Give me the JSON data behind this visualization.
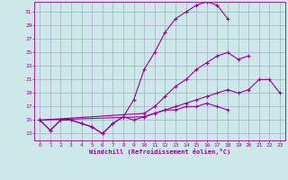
{
  "xlabel": "Windchill (Refroidissement éolien,°C)",
  "bg_color": "#cce8e8",
  "line_color": "#990099",
  "grid_color": "#aaaacc",
  "xlim": [
    -0.5,
    23.5
  ],
  "ylim": [
    12,
    32.5
  ],
  "yticks": [
    13,
    15,
    17,
    19,
    21,
    23,
    25,
    27,
    29,
    31
  ],
  "xticks": [
    0,
    1,
    2,
    3,
    4,
    5,
    6,
    7,
    8,
    9,
    10,
    11,
    12,
    13,
    14,
    15,
    16,
    17,
    18,
    19,
    20,
    21,
    22,
    23
  ],
  "series": [
    {
      "x": [
        0,
        1,
        2,
        3,
        4,
        5,
        6,
        7,
        8,
        9,
        10,
        11,
        12,
        13,
        14,
        15,
        16,
        17,
        18
      ],
      "y": [
        15,
        13.5,
        15,
        15,
        14.5,
        14,
        13,
        14.5,
        15.5,
        18,
        22.5,
        25,
        28,
        30,
        31,
        32,
        32.5,
        32,
        30
      ]
    },
    {
      "x": [
        0,
        10,
        11,
        12,
        13,
        14,
        15,
        16,
        17,
        18,
        19,
        20
      ],
      "y": [
        15,
        16,
        17,
        18.5,
        20,
        21,
        22.5,
        23.5,
        24.5,
        25,
        24,
        24.5
      ]
    },
    {
      "x": [
        0,
        10,
        11,
        12,
        13,
        14,
        15,
        16,
        17,
        18,
        19,
        20,
        21,
        22,
        23
      ],
      "y": [
        15,
        15.5,
        16,
        16.5,
        17,
        17.5,
        18,
        18.5,
        19,
        19.5,
        19,
        19.5,
        21,
        21,
        19
      ]
    },
    {
      "x": [
        0,
        1,
        2,
        3,
        4,
        5,
        6,
        7,
        8,
        9,
        10,
        11,
        12,
        13,
        14,
        15,
        16,
        17,
        18,
        21,
        22,
        23
      ],
      "y": [
        15,
        13.5,
        15,
        15,
        14.5,
        14,
        13,
        14.5,
        15.5,
        15,
        15.5,
        16,
        16.5,
        16.5,
        17,
        17,
        17.5,
        17,
        16.5,
        null,
        null,
        null
      ]
    }
  ]
}
